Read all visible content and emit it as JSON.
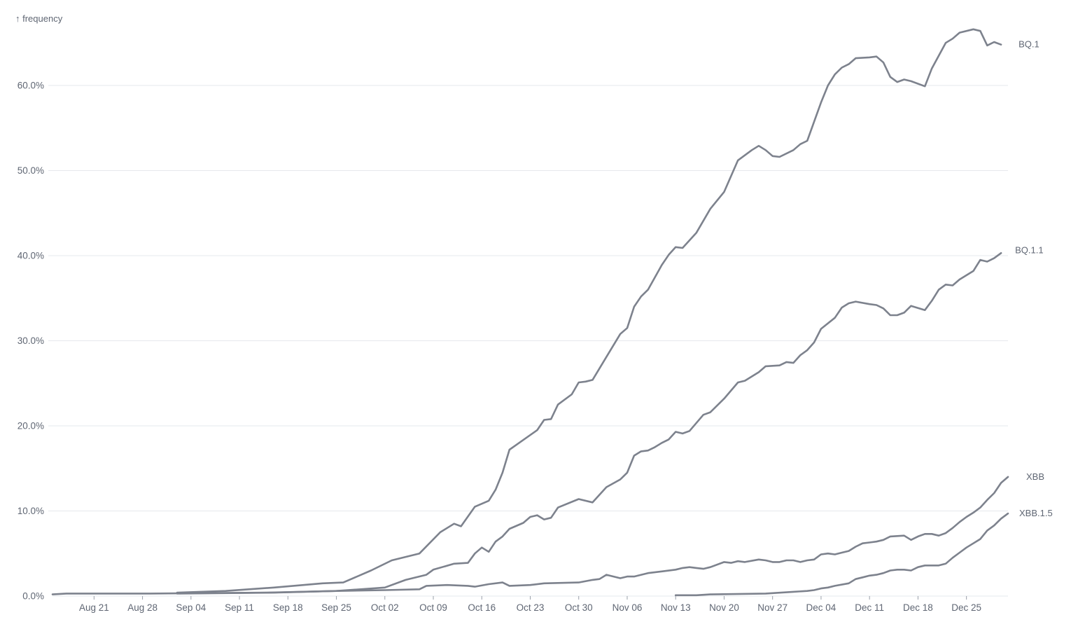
{
  "chart_data": {
    "type": "line",
    "ylabel": "↑ frequency",
    "xlabel": "",
    "ylim": [
      0,
      0.665
    ],
    "xrange": [
      "2022-08-15",
      "2022-12-31"
    ],
    "y_ticks": [
      {
        "value": 0.0,
        "label": "0.0%"
      },
      {
        "value": 0.1,
        "label": "10.0%"
      },
      {
        "value": 0.2,
        "label": "20.0%"
      },
      {
        "value": 0.3,
        "label": "30.0%"
      },
      {
        "value": 0.4,
        "label": "40.0%"
      },
      {
        "value": 0.5,
        "label": "50.0%"
      },
      {
        "value": 0.6,
        "label": "60.0%"
      }
    ],
    "x_ticks": [
      {
        "date": "2022-08-21",
        "label": "Aug 21"
      },
      {
        "date": "2022-08-28",
        "label": "Aug 28"
      },
      {
        "date": "2022-09-04",
        "label": "Sep 04"
      },
      {
        "date": "2022-09-11",
        "label": "Sep 11"
      },
      {
        "date": "2022-09-18",
        "label": "Sep 18"
      },
      {
        "date": "2022-09-25",
        "label": "Sep 25"
      },
      {
        "date": "2022-10-02",
        "label": "Oct 02"
      },
      {
        "date": "2022-10-09",
        "label": "Oct 09"
      },
      {
        "date": "2022-10-16",
        "label": "Oct 16"
      },
      {
        "date": "2022-10-23",
        "label": "Oct 23"
      },
      {
        "date": "2022-10-30",
        "label": "Oct 30"
      },
      {
        "date": "2022-11-06",
        "label": "Nov 06"
      },
      {
        "date": "2022-11-13",
        "label": "Nov 13"
      },
      {
        "date": "2022-11-20",
        "label": "Nov 20"
      },
      {
        "date": "2022-11-27",
        "label": "Nov 27"
      },
      {
        "date": "2022-12-04",
        "label": "Dec 04"
      },
      {
        "date": "2022-12-11",
        "label": "Dec 11"
      },
      {
        "date": "2022-12-18",
        "label": "Dec 18"
      },
      {
        "date": "2022-12-25",
        "label": "Dec 25"
      }
    ],
    "grid": true,
    "line_color": "#7d828d",
    "series": [
      {
        "name": "BQ.1",
        "points": [
          [
            "2022-09-02",
            0.004
          ],
          [
            "2022-09-09",
            0.006
          ],
          [
            "2022-09-16",
            0.01
          ],
          [
            "2022-09-23",
            0.015
          ],
          [
            "2022-09-26",
            0.016
          ],
          [
            "2022-09-30",
            0.03
          ],
          [
            "2022-10-03",
            0.042
          ],
          [
            "2022-10-07",
            0.05
          ],
          [
            "2022-10-10",
            0.075
          ],
          [
            "2022-10-12",
            0.085
          ],
          [
            "2022-10-13",
            0.082
          ],
          [
            "2022-10-15",
            0.105
          ],
          [
            "2022-10-17",
            0.112
          ],
          [
            "2022-10-18",
            0.125
          ],
          [
            "2022-10-19",
            0.145
          ],
          [
            "2022-10-20",
            0.172
          ],
          [
            "2022-10-24",
            0.195
          ],
          [
            "2022-10-25",
            0.207
          ],
          [
            "2022-10-26",
            0.208
          ],
          [
            "2022-10-27",
            0.225
          ],
          [
            "2022-10-29",
            0.237
          ],
          [
            "2022-10-30",
            0.251
          ],
          [
            "2022-10-31",
            0.252
          ],
          [
            "2022-11-01",
            0.254
          ],
          [
            "2022-11-03",
            0.281
          ],
          [
            "2022-11-05",
            0.308
          ],
          [
            "2022-11-06",
            0.315
          ],
          [
            "2022-11-07",
            0.34
          ],
          [
            "2022-11-08",
            0.352
          ],
          [
            "2022-11-09",
            0.36
          ],
          [
            "2022-11-11",
            0.389
          ],
          [
            "2022-11-12",
            0.401
          ],
          [
            "2022-11-13",
            0.41
          ],
          [
            "2022-11-14",
            0.409
          ],
          [
            "2022-11-16",
            0.427
          ],
          [
            "2022-11-18",
            0.455
          ],
          [
            "2022-11-20",
            0.475
          ],
          [
            "2022-11-22",
            0.512
          ],
          [
            "2022-11-24",
            0.524
          ],
          [
            "2022-11-25",
            0.529
          ],
          [
            "2022-11-26",
            0.524
          ],
          [
            "2022-11-27",
            0.517
          ],
          [
            "2022-11-28",
            0.516
          ],
          [
            "2022-11-30",
            0.524
          ],
          [
            "2022-12-01",
            0.531
          ],
          [
            "2022-12-02",
            0.535
          ],
          [
            "2022-12-04",
            0.58
          ],
          [
            "2022-12-05",
            0.6
          ],
          [
            "2022-12-06",
            0.613
          ],
          [
            "2022-12-07",
            0.621
          ],
          [
            "2022-12-08",
            0.625
          ],
          [
            "2022-12-09",
            0.632
          ],
          [
            "2022-12-11",
            0.633
          ],
          [
            "2022-12-12",
            0.634
          ],
          [
            "2022-12-13",
            0.627
          ],
          [
            "2022-12-14",
            0.61
          ],
          [
            "2022-12-15",
            0.604
          ],
          [
            "2022-12-16",
            0.607
          ],
          [
            "2022-12-17",
            0.605
          ],
          [
            "2022-12-19",
            0.599
          ],
          [
            "2022-12-20",
            0.62
          ],
          [
            "2022-12-22",
            0.65
          ],
          [
            "2022-12-23",
            0.655
          ],
          [
            "2022-12-24",
            0.662
          ],
          [
            "2022-12-26",
            0.666
          ],
          [
            "2022-12-27",
            0.664
          ],
          [
            "2022-12-28",
            0.647
          ],
          [
            "2022-12-29",
            0.651
          ],
          [
            "2022-12-30",
            0.648
          ]
        ]
      },
      {
        "name": "BQ.1.1",
        "points": [
          [
            "2022-09-02",
            0.003
          ],
          [
            "2022-09-16",
            0.004
          ],
          [
            "2022-09-25",
            0.006
          ],
          [
            "2022-10-02",
            0.01
          ],
          [
            "2022-10-05",
            0.019
          ],
          [
            "2022-10-08",
            0.025
          ],
          [
            "2022-10-09",
            0.031
          ],
          [
            "2022-10-12",
            0.038
          ],
          [
            "2022-10-14",
            0.039
          ],
          [
            "2022-10-15",
            0.05
          ],
          [
            "2022-10-16",
            0.057
          ],
          [
            "2022-10-17",
            0.052
          ],
          [
            "2022-10-18",
            0.064
          ],
          [
            "2022-10-19",
            0.07
          ],
          [
            "2022-10-20",
            0.079
          ],
          [
            "2022-10-22",
            0.086
          ],
          [
            "2022-10-23",
            0.093
          ],
          [
            "2022-10-24",
            0.095
          ],
          [
            "2022-10-25",
            0.09
          ],
          [
            "2022-10-26",
            0.092
          ],
          [
            "2022-10-27",
            0.104
          ],
          [
            "2022-10-30",
            0.114
          ],
          [
            "2022-11-01",
            0.11
          ],
          [
            "2022-11-03",
            0.128
          ],
          [
            "2022-11-05",
            0.137
          ],
          [
            "2022-11-06",
            0.145
          ],
          [
            "2022-11-07",
            0.165
          ],
          [
            "2022-11-08",
            0.17
          ],
          [
            "2022-11-09",
            0.171
          ],
          [
            "2022-11-10",
            0.175
          ],
          [
            "2022-11-11",
            0.18
          ],
          [
            "2022-11-12",
            0.184
          ],
          [
            "2022-11-13",
            0.193
          ],
          [
            "2022-11-14",
            0.191
          ],
          [
            "2022-11-15",
            0.194
          ],
          [
            "2022-11-17",
            0.213
          ],
          [
            "2022-11-18",
            0.216
          ],
          [
            "2022-11-20",
            0.232
          ],
          [
            "2022-11-22",
            0.251
          ],
          [
            "2022-11-23",
            0.253
          ],
          [
            "2022-11-25",
            0.263
          ],
          [
            "2022-11-26",
            0.27
          ],
          [
            "2022-11-28",
            0.271
          ],
          [
            "2022-11-29",
            0.275
          ],
          [
            "2022-11-30",
            0.274
          ],
          [
            "2022-12-01",
            0.283
          ],
          [
            "2022-12-02",
            0.289
          ],
          [
            "2022-12-03",
            0.298
          ],
          [
            "2022-12-04",
            0.314
          ],
          [
            "2022-12-06",
            0.327
          ],
          [
            "2022-12-07",
            0.339
          ],
          [
            "2022-12-08",
            0.344
          ],
          [
            "2022-12-09",
            0.346
          ],
          [
            "2022-12-11",
            0.343
          ],
          [
            "2022-12-12",
            0.342
          ],
          [
            "2022-12-13",
            0.338
          ],
          [
            "2022-12-14",
            0.33
          ],
          [
            "2022-12-15",
            0.33
          ],
          [
            "2022-12-16",
            0.333
          ],
          [
            "2022-12-17",
            0.341
          ],
          [
            "2022-12-19",
            0.336
          ],
          [
            "2022-12-20",
            0.347
          ],
          [
            "2022-12-21",
            0.36
          ],
          [
            "2022-12-22",
            0.366
          ],
          [
            "2022-12-23",
            0.365
          ],
          [
            "2022-12-24",
            0.372
          ],
          [
            "2022-12-26",
            0.382
          ],
          [
            "2022-12-27",
            0.395
          ],
          [
            "2022-12-28",
            0.393
          ],
          [
            "2022-12-29",
            0.397
          ],
          [
            "2022-12-30",
            0.403
          ]
        ]
      },
      {
        "name": "XBB",
        "points": [
          [
            "2022-08-15",
            0.002
          ],
          [
            "2022-08-17",
            0.003
          ],
          [
            "2022-08-29",
            0.003
          ],
          [
            "2022-09-15",
            0.004
          ],
          [
            "2022-09-25",
            0.006
          ],
          [
            "2022-10-02",
            0.007
          ],
          [
            "2022-10-07",
            0.008
          ],
          [
            "2022-10-08",
            0.012
          ],
          [
            "2022-10-11",
            0.013
          ],
          [
            "2022-10-14",
            0.012
          ],
          [
            "2022-10-15",
            0.011
          ],
          [
            "2022-10-17",
            0.014
          ],
          [
            "2022-10-19",
            0.016
          ],
          [
            "2022-10-20",
            0.012
          ],
          [
            "2022-10-23",
            0.013
          ],
          [
            "2022-10-25",
            0.015
          ],
          [
            "2022-10-30",
            0.016
          ],
          [
            "2022-11-01",
            0.019
          ],
          [
            "2022-11-02",
            0.02
          ],
          [
            "2022-11-03",
            0.025
          ],
          [
            "2022-11-05",
            0.021
          ],
          [
            "2022-11-06",
            0.023
          ],
          [
            "2022-11-07",
            0.023
          ],
          [
            "2022-11-09",
            0.027
          ],
          [
            "2022-11-11",
            0.029
          ],
          [
            "2022-11-13",
            0.031
          ],
          [
            "2022-11-14",
            0.033
          ],
          [
            "2022-11-15",
            0.034
          ],
          [
            "2022-11-16",
            0.033
          ],
          [
            "2022-11-17",
            0.032
          ],
          [
            "2022-11-18",
            0.034
          ],
          [
            "2022-11-20",
            0.04
          ],
          [
            "2022-11-21",
            0.039
          ],
          [
            "2022-11-22",
            0.041
          ],
          [
            "2022-11-23",
            0.04
          ],
          [
            "2022-11-25",
            0.043
          ],
          [
            "2022-11-26",
            0.042
          ],
          [
            "2022-11-27",
            0.04
          ],
          [
            "2022-11-28",
            0.04
          ],
          [
            "2022-11-29",
            0.042
          ],
          [
            "2022-11-30",
            0.042
          ],
          [
            "2022-12-01",
            0.04
          ],
          [
            "2022-12-02",
            0.042
          ],
          [
            "2022-12-03",
            0.043
          ],
          [
            "2022-12-04",
            0.049
          ],
          [
            "2022-12-05",
            0.05
          ],
          [
            "2022-12-06",
            0.049
          ],
          [
            "2022-12-07",
            0.051
          ],
          [
            "2022-12-08",
            0.053
          ],
          [
            "2022-12-09",
            0.058
          ],
          [
            "2022-12-10",
            0.062
          ],
          [
            "2022-12-11",
            0.063
          ],
          [
            "2022-12-12",
            0.064
          ],
          [
            "2022-12-13",
            0.066
          ],
          [
            "2022-12-14",
            0.07
          ],
          [
            "2022-12-16",
            0.071
          ],
          [
            "2022-12-17",
            0.066
          ],
          [
            "2022-12-18",
            0.07
          ],
          [
            "2022-12-19",
            0.073
          ],
          [
            "2022-12-20",
            0.073
          ],
          [
            "2022-12-21",
            0.071
          ],
          [
            "2022-12-22",
            0.074
          ],
          [
            "2022-12-23",
            0.08
          ],
          [
            "2022-12-24",
            0.087
          ],
          [
            "2022-12-25",
            0.093
          ],
          [
            "2022-12-26",
            0.098
          ],
          [
            "2022-12-27",
            0.104
          ],
          [
            "2022-12-28",
            0.113
          ],
          [
            "2022-12-29",
            0.121
          ],
          [
            "2022-12-30",
            0.133
          ],
          [
            "2022-12-31",
            0.14
          ]
        ]
      },
      {
        "name": "XBB.1.5",
        "points": [
          [
            "2022-11-13",
            0.001
          ],
          [
            "2022-11-16",
            0.001
          ],
          [
            "2022-11-18",
            0.002
          ],
          [
            "2022-11-26",
            0.003
          ],
          [
            "2022-11-30",
            0.005
          ],
          [
            "2022-12-02",
            0.006
          ],
          [
            "2022-12-03",
            0.007
          ],
          [
            "2022-12-04",
            0.009
          ],
          [
            "2022-12-05",
            0.01
          ],
          [
            "2022-12-06",
            0.012
          ],
          [
            "2022-12-08",
            0.015
          ],
          [
            "2022-12-09",
            0.02
          ],
          [
            "2022-12-10",
            0.022
          ],
          [
            "2022-12-11",
            0.024
          ],
          [
            "2022-12-12",
            0.025
          ],
          [
            "2022-12-13",
            0.027
          ],
          [
            "2022-12-14",
            0.03
          ],
          [
            "2022-12-15",
            0.031
          ],
          [
            "2022-12-16",
            0.031
          ],
          [
            "2022-12-17",
            0.03
          ],
          [
            "2022-12-18",
            0.034
          ],
          [
            "2022-12-19",
            0.036
          ],
          [
            "2022-12-20",
            0.036
          ],
          [
            "2022-12-21",
            0.036
          ],
          [
            "2022-12-22",
            0.038
          ],
          [
            "2022-12-23",
            0.045
          ],
          [
            "2022-12-24",
            0.051
          ],
          [
            "2022-12-25",
            0.057
          ],
          [
            "2022-12-26",
            0.062
          ],
          [
            "2022-12-27",
            0.067
          ],
          [
            "2022-12-28",
            0.077
          ],
          [
            "2022-12-29",
            0.083
          ],
          [
            "2022-12-30",
            0.091
          ],
          [
            "2022-12-31",
            0.097
          ]
        ]
      }
    ]
  }
}
